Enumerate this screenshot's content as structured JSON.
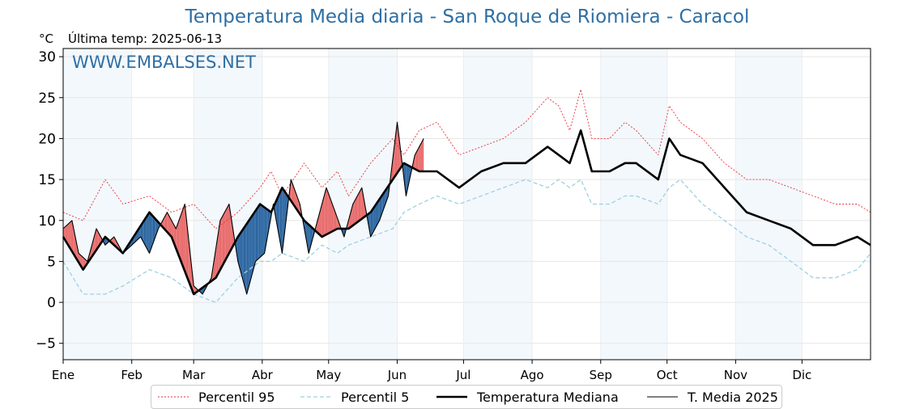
{
  "header": {
    "title": "Temperatura Media diaria - San Roque de Riomiera - Caracol",
    "unit": "°C",
    "last_temp": "Última temp: 2025-06-13",
    "watermark": "WWW.EMBALSES.NET"
  },
  "colors": {
    "title": "#2e6fa4",
    "p95": "#e8323a",
    "p5": "#9fd0e0",
    "median": "#000000",
    "current": "#000000",
    "above_fill": "#e86a6a",
    "below_fill": "#2a65a0",
    "band": "#f3f8fc"
  },
  "legend": [
    {
      "label": "Percentil 95",
      "key": "p95"
    },
    {
      "label": "Percentil 5",
      "key": "p5"
    },
    {
      "label": "Temperatura Mediana",
      "key": "median"
    },
    {
      "label": "T. Media 2025",
      "key": "current"
    }
  ],
  "chart_data": {
    "type": "line",
    "title": "Temperatura Media diaria - San Roque de Riomiera - Caracol",
    "ylabel": "°C",
    "ylim": [
      -7,
      31
    ],
    "xlim": [
      1,
      366
    ],
    "yticks": [
      -5,
      0,
      5,
      10,
      15,
      20,
      25,
      30
    ],
    "months": [
      "Ene",
      "Feb",
      "Mar",
      "Abr",
      "May",
      "Jun",
      "Jul",
      "Ago",
      "Sep",
      "Oct",
      "Nov",
      "Dic"
    ],
    "month_start_days": [
      1,
      32,
      60,
      91,
      121,
      152,
      182,
      213,
      244,
      274,
      305,
      335
    ],
    "grid": true,
    "legend_position": "bottom",
    "series": [
      {
        "name": "Percentil 95",
        "key": "p95",
        "x": [
          1,
          10,
          20,
          28,
          40,
          50,
          60,
          70,
          80,
          90,
          95,
          100,
          110,
          118,
          125,
          130,
          140,
          150,
          155,
          162,
          170,
          180,
          190,
          200,
          210,
          220,
          225,
          230,
          235,
          240,
          248,
          255,
          260,
          270,
          275,
          280,
          290,
          300,
          310,
          320,
          330,
          340,
          350,
          360,
          366
        ],
        "y": [
          11,
          10,
          15,
          12,
          13,
          11,
          12,
          9,
          11,
          14,
          16,
          13,
          17,
          14,
          16,
          13,
          17,
          20,
          18,
          21,
          22,
          18,
          19,
          20,
          22,
          25,
          24,
          21,
          26,
          20,
          20,
          22,
          21,
          18,
          24,
          22,
          20,
          17,
          15,
          15,
          14,
          13,
          12,
          12,
          11
        ]
      },
      {
        "name": "Percentil 5",
        "key": "p5",
        "x": [
          1,
          10,
          20,
          28,
          40,
          50,
          60,
          70,
          80,
          90,
          95,
          100,
          110,
          118,
          125,
          130,
          140,
          150,
          155,
          162,
          170,
          180,
          190,
          200,
          210,
          220,
          225,
          230,
          235,
          240,
          248,
          255,
          260,
          270,
          275,
          280,
          290,
          300,
          310,
          320,
          330,
          340,
          350,
          360,
          366
        ],
        "y": [
          5,
          1,
          1,
          2,
          4,
          3,
          1,
          0,
          3,
          5,
          5,
          6,
          5,
          7,
          6,
          7,
          8,
          9,
          11,
          12,
          13,
          12,
          13,
          14,
          15,
          14,
          15,
          14,
          15,
          12,
          12,
          13,
          13,
          12,
          14,
          15,
          12,
          10,
          8,
          7,
          5,
          3,
          3,
          4,
          6
        ]
      },
      {
        "name": "Temperatura Mediana",
        "key": "median",
        "x": [
          1,
          10,
          20,
          28,
          40,
          50,
          60,
          70,
          80,
          90,
          95,
          100,
          110,
          118,
          125,
          130,
          140,
          150,
          155,
          162,
          170,
          180,
          190,
          200,
          210,
          220,
          225,
          230,
          235,
          240,
          248,
          255,
          260,
          270,
          275,
          280,
          290,
          300,
          310,
          320,
          330,
          340,
          350,
          360,
          366
        ],
        "y": [
          8,
          4,
          8,
          6,
          11,
          8,
          1,
          3,
          8,
          12,
          11,
          14,
          10,
          8,
          9,
          9,
          11,
          15,
          17,
          16,
          16,
          14,
          16,
          17,
          17,
          19,
          18,
          17,
          21,
          16,
          16,
          17,
          17,
          15,
          20,
          18,
          17,
          14,
          11,
          10,
          9,
          7,
          7,
          8,
          7
        ]
      },
      {
        "name": "T. Media 2025",
        "key": "current",
        "x": [
          1,
          5,
          8,
          12,
          16,
          20,
          24,
          28,
          32,
          36,
          40,
          44,
          48,
          52,
          56,
          60,
          64,
          68,
          72,
          76,
          80,
          84,
          88,
          92,
          96,
          100,
          104,
          108,
          112,
          116,
          120,
          124,
          128,
          132,
          136,
          140,
          144,
          148,
          152,
          156,
          160,
          164
        ],
        "y": [
          9,
          10,
          6,
          5,
          9,
          7,
          8,
          6,
          7,
          8,
          6,
          9,
          11,
          9,
          12,
          2,
          1,
          3,
          10,
          12,
          5,
          1,
          5,
          6,
          12,
          6,
          15,
          12,
          6,
          10,
          14,
          11,
          8,
          12,
          14,
          8,
          10,
          13,
          22,
          13,
          18,
          20
        ]
      }
    ]
  }
}
